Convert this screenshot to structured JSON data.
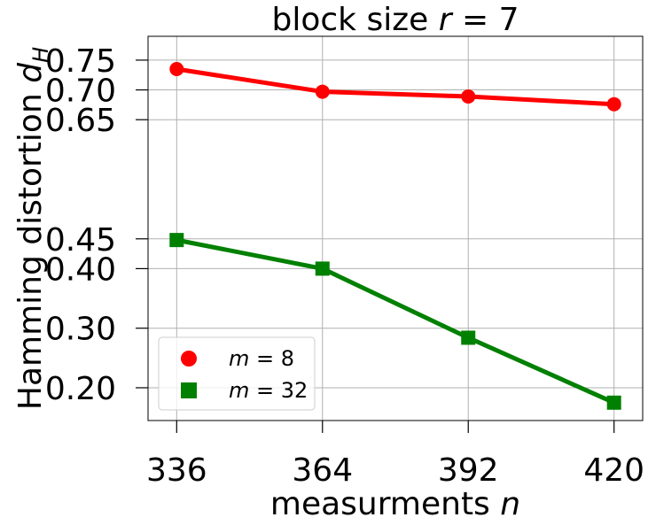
{
  "chart_data": {
    "type": "line",
    "title_prefix": "block size ",
    "title_var": "r",
    "title_suffix": " = 7",
    "xlabel_prefix": "measurments ",
    "xlabel_var": "n",
    "ylabel_prefix": "Hamming distortion ",
    "ylabel_var": "d",
    "ylabel_sub": "H",
    "x": [
      336,
      364,
      392,
      420
    ],
    "x_ticks": [
      "336",
      "364",
      "392",
      "420"
    ],
    "y_ticks": [
      "0.20",
      "0.30",
      "0.40",
      "0.45",
      "0.65",
      "0.70",
      "0.75"
    ],
    "y_tick_values": [
      0.2,
      0.3,
      0.4,
      0.45,
      0.65,
      0.7,
      0.75
    ],
    "xlim": [
      330.5,
      425.5
    ],
    "ylim": [
      0.145,
      0.79
    ],
    "grid": true,
    "legend_position": "lower-left",
    "series": [
      {
        "name_var": "m",
        "name_suffix": " = 8",
        "values": [
          0.735,
          0.697,
          0.689,
          0.676
        ],
        "color": "#ff0000",
        "marker": "circle"
      },
      {
        "name_var": "m",
        "name_suffix": " = 32",
        "values": [
          0.448,
          0.4,
          0.284,
          0.175
        ],
        "color": "#008000",
        "marker": "square"
      }
    ]
  }
}
